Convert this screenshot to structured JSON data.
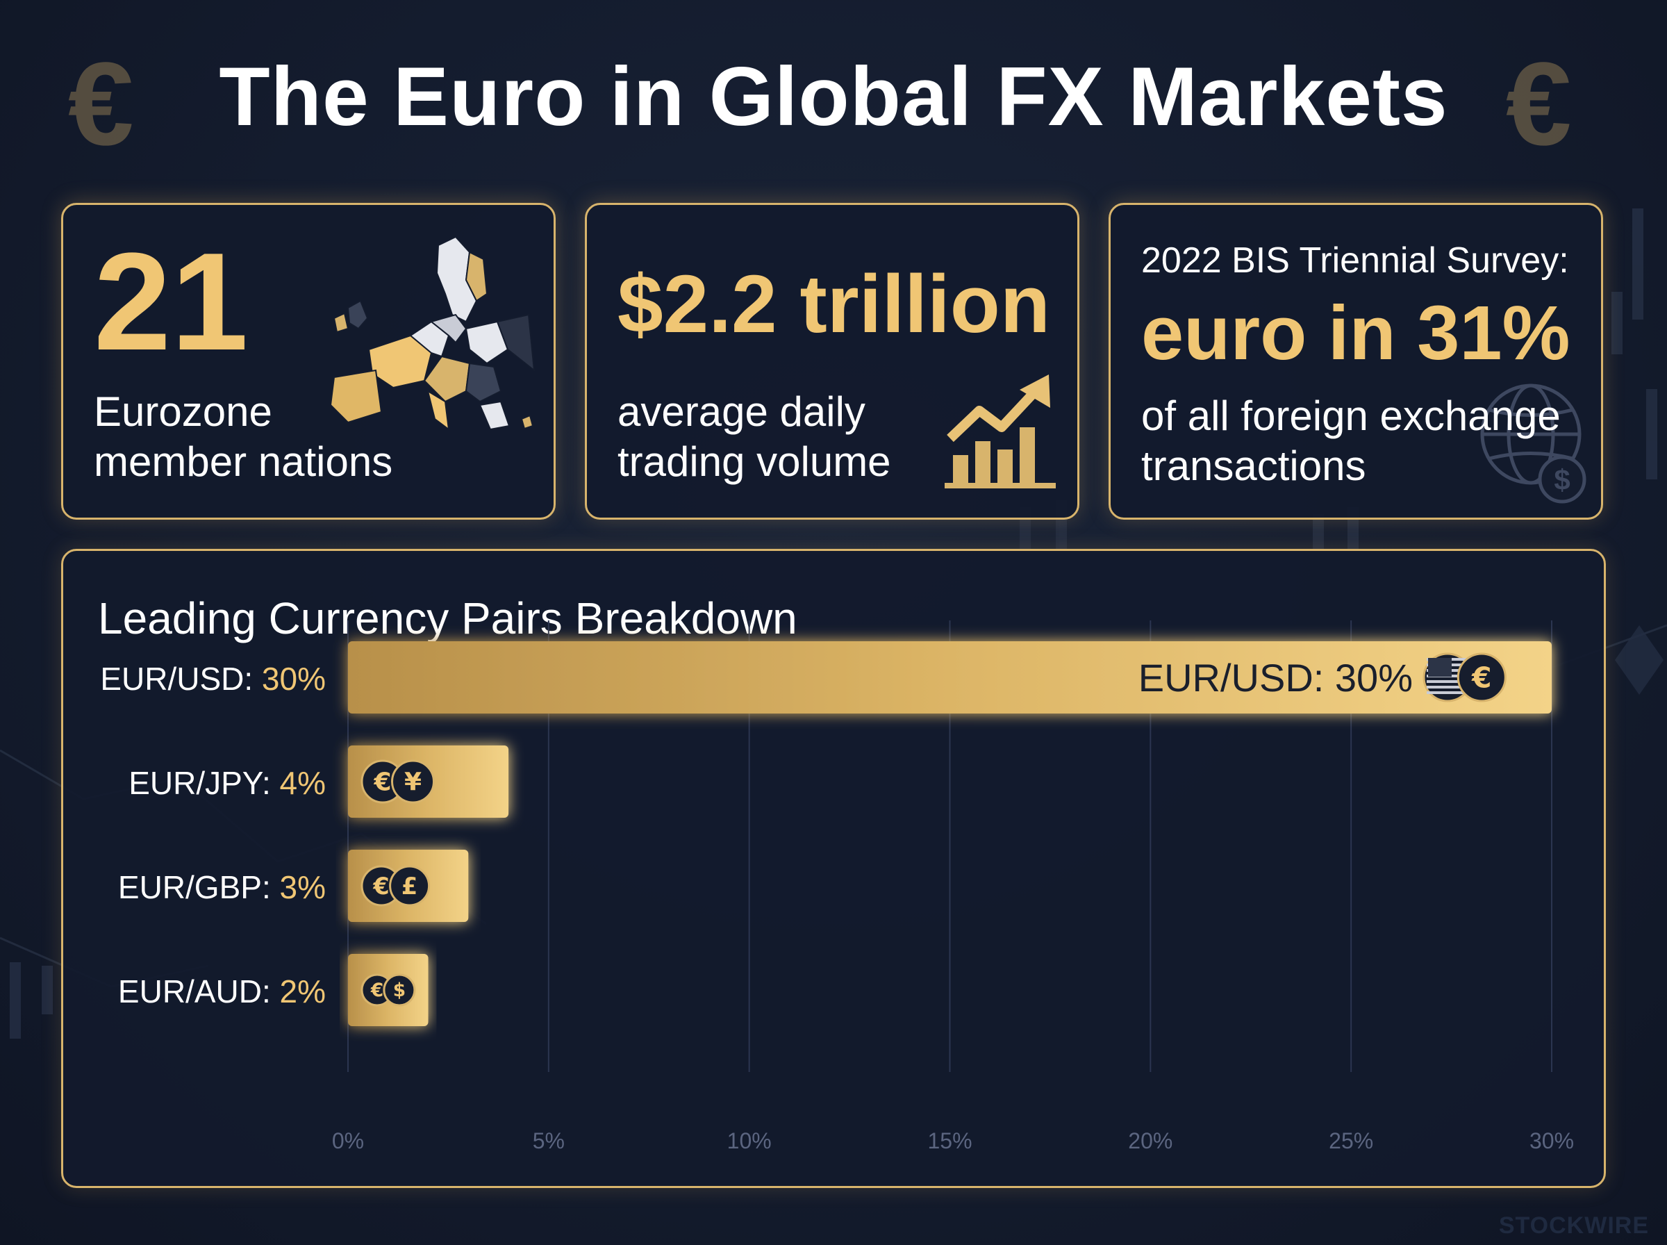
{
  "title": "The Euro in Global FX Markets",
  "decor": {
    "euro_symbol": "€",
    "colors": {
      "background": "#141c2e",
      "accent_gold": "#f0c674",
      "card_border": "#d8b46c"
    }
  },
  "cards": [
    {
      "value": "21",
      "label_line1": "Eurozone",
      "label_line2": "member nations",
      "icon": "europe-map-icon"
    },
    {
      "value": "$2.2 trillion",
      "label_line1": "average daily",
      "label_line2": "trading volume",
      "icon": "growth-chart-icon"
    },
    {
      "heading": "2022 BIS Triennial Survey:",
      "value": "euro in 31%",
      "label_line1": "of all foreign exchange",
      "label_line2": "transactions",
      "icon": "globe-dollar-icon"
    }
  ],
  "chart_data": {
    "type": "bar",
    "orientation": "horizontal",
    "title": "Leading Currency Pairs Breakdown",
    "categories": [
      "EUR/USD",
      "EUR/JPY",
      "EUR/GBP",
      "EUR/AUD"
    ],
    "values": [
      30,
      4,
      3,
      2
    ],
    "row_labels": [
      {
        "pair": "EUR/USD:",
        "pct": "30%"
      },
      {
        "pair": "EUR/JPY:",
        "pct": "4%"
      },
      {
        "pair": "EUR/GBP:",
        "pct": "3%"
      },
      {
        "pair": "EUR/AUD:",
        "pct": "2%"
      }
    ],
    "inner_label": "EUR/USD: 30%",
    "bar_icons": [
      [
        "us-flag",
        "€"
      ],
      [
        "€",
        "¥"
      ],
      [
        "€",
        "£"
      ],
      [
        "€",
        "$"
      ]
    ],
    "x_ticks": [
      "0%",
      "5%",
      "10%",
      "15%",
      "20%",
      "25%",
      "30%"
    ],
    "xlim": [
      0,
      30
    ],
    "grid": true,
    "xlabel": "",
    "ylabel": ""
  },
  "watermark": "STOCKWIRE"
}
